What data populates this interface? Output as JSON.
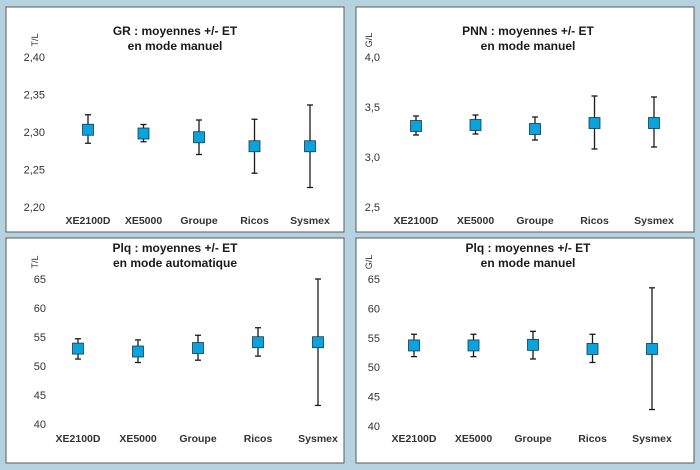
{
  "chart_data": [
    {
      "type": "scatter",
      "title": [
        "GR : moyennes +/- ET",
        "en mode manuel"
      ],
      "unit": "T/L",
      "categories": [
        "XE2100D",
        "XE5000",
        "Groupe",
        "Ricos",
        "Sysmex"
      ],
      "ylim": [
        2.2,
        2.4
      ],
      "yticks": [
        "2,20",
        "2,25",
        "2,30",
        "2,35",
        "2,40"
      ],
      "values": [
        2.303,
        2.298,
        2.293,
        2.281,
        2.281
      ],
      "error_low": [
        2.285,
        2.287,
        2.27,
        2.245,
        2.226
      ],
      "error_high": [
        2.323,
        2.31,
        2.316,
        2.317,
        2.336
      ],
      "marker_color": "#0aa3dc",
      "grid": false
    },
    {
      "type": "scatter",
      "title": [
        "PNN : moyennes +/- ET",
        "en mode manuel"
      ],
      "unit": "G/L",
      "categories": [
        "XE2100D",
        "XE5000",
        "Groupe",
        "Ricos",
        "Sysmex"
      ],
      "ylim": [
        2.5,
        4.0
      ],
      "yticks": [
        "2,5",
        "3,0",
        "3,5",
        "4,0"
      ],
      "values": [
        3.31,
        3.32,
        3.28,
        3.34,
        3.34
      ],
      "error_low": [
        3.22,
        3.23,
        3.17,
        3.08,
        3.1
      ],
      "error_high": [
        3.41,
        3.42,
        3.4,
        3.61,
        3.6
      ],
      "marker_color": "#0aa3dc",
      "grid": false
    },
    {
      "type": "scatter",
      "title": [
        "Plq : moyennes +/- ET",
        "en mode automatique"
      ],
      "unit": "T/L",
      "categories": [
        "XE2100D",
        "XE5000",
        "Groupe",
        "Ricos",
        "Sysmex"
      ],
      "ylim": [
        40,
        65
      ],
      "yticks": [
        "40",
        "45",
        "50",
        "55",
        "60",
        "65"
      ],
      "values": [
        53.0,
        52.5,
        53.1,
        54.1,
        54.1
      ],
      "error_low": [
        51.2,
        50.6,
        51.0,
        51.7,
        43.2
      ],
      "error_high": [
        54.7,
        54.5,
        55.3,
        56.6,
        65.0
      ],
      "marker_color": "#0aa3dc",
      "grid": false
    },
    {
      "type": "scatter",
      "title": [
        "Plq : moyennes +/- ET",
        "en mode manuel"
      ],
      "unit": "G/L",
      "categories": [
        "XE2100D",
        "XE5000",
        "Groupe",
        "Ricos",
        "Sysmex"
      ],
      "ylim": [
        40,
        65
      ],
      "yticks": [
        "40",
        "45",
        "50",
        "55",
        "60",
        "65"
      ],
      "values": [
        53.7,
        53.7,
        53.8,
        53.1,
        53.1
      ],
      "error_low": [
        51.8,
        51.8,
        51.4,
        50.8,
        42.8
      ],
      "error_high": [
        55.6,
        55.6,
        56.1,
        55.6,
        63.5
      ],
      "marker_color": "#0aa3dc",
      "grid": false
    }
  ]
}
